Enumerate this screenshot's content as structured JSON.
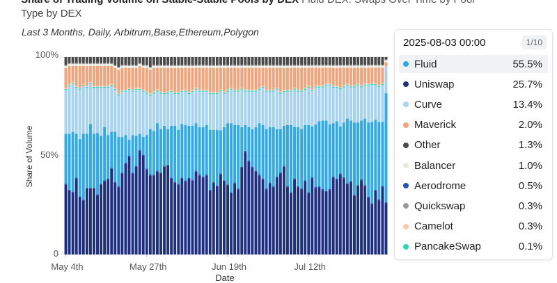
{
  "header": {
    "title": "Share of Trading Volume on Stable-Stable Pools by DEX",
    "title_suffix": "Fluid DEX: Swaps Over Time by Pool",
    "title_line2": "Type by DEX",
    "subtitle": "Last 3 Months, Daily, Arbitrum,Base,Ethereum,Polygon"
  },
  "colors": {
    "Fluid": "#2ea9ec",
    "Uniswap": "#1d2f83",
    "Curve": "#a6d3f2",
    "Maverick": "#f4a27a",
    "Other": "#4a4a4a",
    "Balancer": "#e6ecdc",
    "Aerodrome": "#2450c6",
    "Quickswap": "#9a9a9a",
    "Camelot": "#f8c9ad",
    "PancakeSwap": "#2fd6b6"
  },
  "chart_data": {
    "type": "bar",
    "stacked": true,
    "normalized": true,
    "title": "Share of Trading Volume on Stable-Stable Pools by DEX",
    "xlabel": "Date",
    "ylabel": "Share of Volume",
    "ylim": [
      0,
      100
    ],
    "y_ticks": [
      "0",
      "50%",
      "100%"
    ],
    "x_ticks": [
      "May 4th",
      "May 27th",
      "Jun 19th",
      "Jul 12th"
    ],
    "x_tick_index": [
      0,
      23,
      46,
      69
    ],
    "start_date": "2025-05-04",
    "categories": [
      "2025-05-04",
      "2025-05-05",
      "2025-05-06",
      "2025-05-07",
      "2025-05-08",
      "2025-05-09",
      "2025-05-10",
      "2025-05-11",
      "2025-05-12",
      "2025-05-13",
      "2025-05-14",
      "2025-05-15",
      "2025-05-16",
      "2025-05-17",
      "2025-05-18",
      "2025-05-19",
      "2025-05-20",
      "2025-05-21",
      "2025-05-22",
      "2025-05-23",
      "2025-05-24",
      "2025-05-25",
      "2025-05-26",
      "2025-05-27",
      "2025-05-28",
      "2025-05-29",
      "2025-05-30",
      "2025-05-31",
      "2025-06-01",
      "2025-06-02",
      "2025-06-03",
      "2025-06-04",
      "2025-06-05",
      "2025-06-06",
      "2025-06-07",
      "2025-06-08",
      "2025-06-09",
      "2025-06-10",
      "2025-06-11",
      "2025-06-12",
      "2025-06-13",
      "2025-06-14",
      "2025-06-15",
      "2025-06-16",
      "2025-06-17",
      "2025-06-18",
      "2025-06-19",
      "2025-06-20",
      "2025-06-21",
      "2025-06-22",
      "2025-06-23",
      "2025-06-24",
      "2025-06-25",
      "2025-06-26",
      "2025-06-27",
      "2025-06-28",
      "2025-06-29",
      "2025-06-30",
      "2025-07-01",
      "2025-07-02",
      "2025-07-03",
      "2025-07-04",
      "2025-07-05",
      "2025-07-06",
      "2025-07-07",
      "2025-07-08",
      "2025-07-09",
      "2025-07-10",
      "2025-07-11",
      "2025-07-12",
      "2025-07-13",
      "2025-07-14",
      "2025-07-15",
      "2025-07-16",
      "2025-07-17",
      "2025-07-18",
      "2025-07-19",
      "2025-07-20",
      "2025-07-21",
      "2025-07-22",
      "2025-07-23",
      "2025-07-24",
      "2025-07-25",
      "2025-07-26",
      "2025-07-27",
      "2025-07-28",
      "2025-07-29",
      "2025-07-30",
      "2025-07-31",
      "2025-08-01",
      "2025-08-02",
      "2025-08-03"
    ],
    "uniswap": [
      35,
      32,
      31,
      38,
      29,
      27,
      33,
      33,
      33,
      30,
      35,
      37,
      38,
      43,
      36,
      34,
      41,
      46,
      49,
      41,
      44,
      52,
      50,
      43,
      40,
      40,
      42,
      41,
      44,
      45,
      38,
      36,
      35,
      38,
      37,
      38,
      37,
      42,
      40,
      39,
      40,
      32,
      36,
      34,
      41,
      37,
      35,
      31,
      36,
      33,
      44,
      52,
      47,
      44,
      42,
      40,
      38,
      33,
      36,
      34,
      39,
      41,
      44,
      34,
      31,
      38,
      34,
      33,
      37,
      31,
      39,
      34,
      34,
      33,
      32,
      33,
      39,
      38,
      41,
      39,
      36,
      37,
      30,
      35,
      38,
      35,
      29,
      26,
      33,
      28,
      35,
      26
    ],
    "series": [
      {
        "name": "Uniswap",
        "values": [
          35,
          32,
          31,
          38,
          29,
          27,
          33,
          33,
          33,
          30,
          35,
          37,
          38,
          43,
          36,
          34,
          41,
          46,
          49,
          41,
          44,
          52,
          50,
          43,
          40,
          40,
          42,
          41,
          44,
          45,
          38,
          36,
          35,
          38,
          37,
          38,
          37,
          42,
          40,
          39,
          40,
          32,
          36,
          34,
          41,
          37,
          35,
          31,
          36,
          33,
          44,
          52,
          47,
          44,
          42,
          40,
          38,
          33,
          36,
          34,
          39,
          41,
          44,
          34,
          31,
          38,
          34,
          33,
          37,
          31,
          39,
          34,
          34,
          33,
          32,
          33,
          39,
          38,
          41,
          39,
          36,
          37,
          30,
          35,
          38,
          35,
          29,
          26,
          33,
          28,
          35,
          26
        ]
      },
      {
        "name": "Aerodrome",
        "values": [
          0.5,
          0.5,
          0.5,
          0.5,
          0.5,
          0.5,
          0.5,
          0.5,
          0.5,
          0.5,
          0.5,
          0.5,
          0.5,
          0.5,
          0.5,
          0.5,
          0.5,
          0.5,
          0.5,
          0.5,
          0.5,
          0.5,
          0.5,
          0.5,
          0.5,
          0.5,
          0.5,
          0.5,
          0.5,
          0.5,
          0.5,
          0.5,
          0.5,
          0.5,
          0.5,
          0.5,
          0.5,
          0.5,
          0.5,
          0.5,
          0.5,
          0.5,
          0.5,
          0.5,
          0.5,
          0.5,
          0.5,
          0.5,
          0.5,
          0.5,
          0.5,
          0.5,
          0.5,
          0.5,
          0.5,
          0.5,
          0.5,
          0.5,
          0.5,
          0.5,
          0.5,
          0.5,
          0.5,
          0.5,
          0.5,
          0.5,
          0.5,
          0.5,
          0.5,
          0.5,
          0.5,
          0.5,
          0.5,
          0.5,
          0.5,
          0.5,
          0.5,
          0.5,
          0.5,
          0.5,
          0.5,
          0.5,
          0.5,
          0.5,
          0.5,
          0.5,
          0.5,
          0.5,
          0.5,
          0.5,
          0.5,
          0.5
        ]
      },
      {
        "name": "Fluid",
        "values": [
          25,
          28,
          30,
          22,
          29,
          33,
          27,
          32,
          27,
          31,
          24,
          27,
          22,
          18,
          25,
          25,
          18,
          14,
          8,
          19,
          15,
          8,
          9,
          17,
          23,
          22,
          24,
          22,
          20,
          18,
          26,
          28,
          27,
          27,
          28,
          26,
          27,
          24,
          24,
          25,
          25,
          30,
          26,
          28,
          22,
          27,
          31,
          35,
          29,
          32,
          20,
          13,
          17,
          19,
          22,
          26,
          27,
          30,
          28,
          30,
          24,
          22,
          20,
          31,
          34,
          26,
          30,
          30,
          28,
          34,
          26,
          32,
          33,
          35,
          36,
          33,
          27,
          29,
          24,
          28,
          33,
          31,
          37,
          32,
          30,
          34,
          38,
          42,
          36,
          40,
          33,
          55.5
        ]
      },
      {
        "name": "Curve",
        "values": [
          22,
          24,
          24,
          23,
          25,
          24,
          23,
          20,
          23,
          23,
          24,
          20,
          24,
          23,
          21,
          21,
          23,
          22,
          25,
          22,
          23,
          22,
          23,
          21,
          17,
          19,
          16,
          18,
          16,
          18,
          17,
          16,
          18,
          16,
          17,
          16,
          17,
          17,
          18,
          18,
          17,
          18,
          18,
          18,
          20,
          17,
          16,
          17,
          17,
          17,
          19,
          17,
          18,
          19,
          18,
          17,
          19,
          19,
          18,
          18,
          20,
          18,
          17,
          17,
          17,
          19,
          18,
          19,
          18,
          19,
          18,
          19,
          17,
          17,
          18,
          20,
          18,
          17,
          19,
          18,
          17,
          17,
          18,
          19,
          17,
          17,
          19,
          19,
          18,
          18,
          19,
          13.4
        ]
      },
      {
        "name": "PancakeSwap",
        "values": [
          0.5,
          0.5,
          0.5,
          0.5,
          0.5,
          0.5,
          0.5,
          0.5,
          0.5,
          0.5,
          0.5,
          0.5,
          0.5,
          0.5,
          0.5,
          0.5,
          0.5,
          0.5,
          0.5,
          0.5,
          0.5,
          0.5,
          0.5,
          0.5,
          0.5,
          0.5,
          0.5,
          0.5,
          0.5,
          0.5,
          0.5,
          0.5,
          0.5,
          0.5,
          0.5,
          0.5,
          0.5,
          0.5,
          0.5,
          0.5,
          0.5,
          0.5,
          0.5,
          0.5,
          0.5,
          0.5,
          0.5,
          0.5,
          0.5,
          0.5,
          0.5,
          0.5,
          0.5,
          0.5,
          0.5,
          0.5,
          0.5,
          0.5,
          0.5,
          0.5,
          0.5,
          0.5,
          0.5,
          0.5,
          0.5,
          0.5,
          0.5,
          0.5,
          0.5,
          0.5,
          0.5,
          0.5,
          0.5,
          0.5,
          0.5,
          0.5,
          0.5,
          0.5,
          0.5,
          0.5,
          0.5,
          0.5,
          0.5,
          0.5,
          0.5,
          0.5,
          0.5,
          0.5,
          0.5,
          0.5,
          0.5,
          0.1
        ]
      },
      {
        "name": "Camelot",
        "values": [
          0.5,
          0.5,
          0.5,
          0.5,
          0.5,
          0.5,
          0.5,
          0.5,
          0.5,
          0.5,
          0.5,
          0.5,
          0.5,
          0.5,
          0.5,
          0.5,
          0.5,
          0.5,
          0.5,
          0.5,
          0.5,
          0.5,
          0.5,
          0.5,
          0.5,
          0.5,
          0.5,
          0.5,
          0.5,
          0.5,
          0.5,
          0.5,
          0.5,
          0.5,
          0.5,
          0.5,
          0.5,
          0.5,
          0.5,
          0.5,
          0.5,
          0.5,
          0.5,
          0.5,
          0.5,
          0.5,
          0.5,
          0.5,
          0.5,
          0.5,
          0.5,
          0.5,
          0.5,
          0.5,
          0.5,
          0.5,
          0.5,
          0.5,
          0.5,
          0.5,
          0.5,
          0.5,
          0.5,
          0.5,
          0.5,
          0.5,
          0.5,
          0.5,
          0.5,
          0.5,
          0.5,
          0.5,
          0.5,
          0.5,
          0.5,
          0.5,
          0.5,
          0.5,
          0.5,
          0.5,
          0.5,
          0.5,
          0.5,
          0.5,
          0.5,
          0.5,
          0.5,
          0.5,
          0.5,
          0.5,
          0.5,
          0.3
        ]
      },
      {
        "name": "Maverick",
        "values": [
          10,
          9,
          8,
          10,
          11,
          9,
          10,
          8,
          10,
          10,
          10,
          10,
          10,
          9,
          10,
          12,
          11,
          11,
          10,
          11,
          10,
          11,
          11,
          12,
          12,
          12,
          11,
          12,
          12,
          12,
          11,
          12,
          12,
          11,
          11,
          12,
          11,
          10,
          11,
          11,
          11,
          12,
          12,
          12,
          11,
          12,
          11,
          10,
          11,
          11,
          10,
          11,
          11,
          11,
          11,
          10,
          9,
          11,
          11,
          11,
          10,
          12,
          11,
          11,
          11,
          10,
          11,
          11,
          10,
          9,
          11,
          9,
          9,
          9,
          8,
          8,
          9,
          9,
          10,
          9,
          8,
          9,
          9,
          8,
          9,
          8,
          8,
          8,
          8,
          9,
          8,
          2.0
        ]
      },
      {
        "name": "Balancer",
        "values": [
          1,
          1,
          1,
          1,
          1,
          1,
          1,
          1,
          1,
          1,
          1,
          1,
          1,
          1,
          1,
          1,
          1,
          1,
          1,
          1,
          1,
          1,
          1,
          1,
          1,
          1,
          1,
          1,
          1,
          1,
          1,
          1,
          1,
          1,
          1,
          1,
          1,
          1,
          1,
          1,
          1,
          1,
          1,
          1,
          1,
          1,
          1,
          1,
          1,
          1,
          1,
          1,
          1,
          1,
          1,
          1,
          1,
          1,
          1,
          1,
          1,
          1,
          1,
          1,
          1,
          1,
          1,
          1,
          1,
          1,
          1,
          1,
          1,
          1,
          1,
          1,
          1,
          1,
          1,
          1,
          1,
          1,
          1,
          1,
          1,
          1,
          1,
          1,
          1,
          1,
          1,
          1.0
        ]
      },
      {
        "name": "Quickswap",
        "values": [
          0.5,
          0.5,
          0.5,
          0.5,
          0.5,
          0.5,
          0.5,
          0.5,
          0.5,
          0.5,
          0.5,
          0.5,
          0.5,
          0.5,
          0.5,
          0.5,
          0.5,
          0.5,
          0.5,
          0.5,
          0.5,
          0.5,
          0.5,
          0.5,
          0.5,
          0.5,
          0.5,
          0.5,
          0.5,
          0.5,
          0.5,
          0.5,
          0.5,
          0.5,
          0.5,
          0.5,
          0.5,
          0.5,
          0.5,
          0.5,
          0.5,
          0.5,
          0.5,
          0.5,
          0.5,
          0.5,
          0.5,
          0.5,
          0.5,
          0.5,
          0.5,
          0.5,
          0.5,
          0.5,
          0.5,
          0.5,
          0.5,
          0.5,
          0.5,
          0.5,
          0.5,
          0.5,
          0.5,
          0.5,
          0.5,
          0.5,
          0.5,
          0.5,
          0.5,
          0.5,
          0.5,
          0.5,
          0.5,
          0.5,
          0.5,
          0.5,
          0.5,
          0.5,
          0.5,
          0.5,
          0.5,
          0.5,
          0.5,
          0.5,
          0.5,
          0.5,
          0.5,
          0.5,
          0.5,
          0.5,
          0.5,
          0.3
        ]
      },
      {
        "name": "Other",
        "values": [
          4,
          3,
          3,
          3,
          3,
          3,
          3,
          3,
          3,
          3,
          3,
          3,
          3,
          3,
          4,
          5,
          4,
          4,
          4,
          4,
          4,
          3,
          4,
          4,
          5,
          4,
          4,
          4,
          4,
          4,
          4,
          4,
          4,
          4,
          4,
          4,
          4,
          4,
          4,
          4,
          4,
          4,
          4,
          4,
          4,
          4,
          4,
          4,
          4,
          4,
          4,
          4,
          4,
          4,
          4,
          4,
          4,
          4,
          4,
          4,
          4,
          4,
          4,
          4,
          4,
          4,
          4,
          4,
          4,
          4,
          4,
          4,
          4,
          4,
          4,
          4,
          4,
          4,
          4,
          4,
          4,
          4,
          4,
          4,
          4,
          4,
          4,
          4,
          4,
          4,
          4,
          1.3
        ]
      }
    ]
  },
  "tooltip": {
    "date": "2025-08-03 00:00",
    "page": "1/10",
    "rows": [
      {
        "name": "Fluid",
        "value": "55.5%"
      },
      {
        "name": "Uniswap",
        "value": "25.7%"
      },
      {
        "name": "Curve",
        "value": "13.4%"
      },
      {
        "name": "Maverick",
        "value": "2.0%"
      },
      {
        "name": "Other",
        "value": "1.3%"
      },
      {
        "name": "Balancer",
        "value": "1.0%"
      },
      {
        "name": "Aerodrome",
        "value": "0.5%"
      },
      {
        "name": "Quickswap",
        "value": "0.3%"
      },
      {
        "name": "Camelot",
        "value": "0.3%"
      },
      {
        "name": "PancakeSwap",
        "value": "0.1%"
      }
    ]
  }
}
